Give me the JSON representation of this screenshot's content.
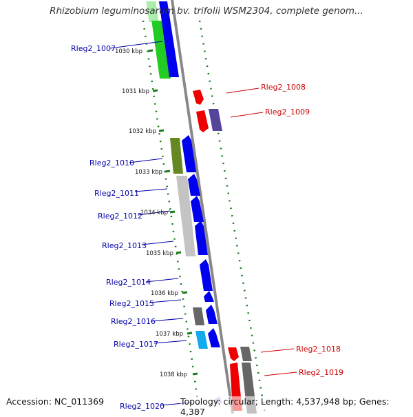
{
  "title": "Rhizobium leguminosarum bv. trifolii WSM2304, complete genom...",
  "accession": "Accession: NC_011369",
  "summary": "Topology: circular; Length: 4,537,948 bp; Genes: 4,387",
  "kbp_ticks": [
    "1030 kbp",
    "1031 kbp",
    "1032 kbp",
    "1033 kbp",
    "1034 kbp",
    "1035 kbp",
    "1036 kbp",
    "1037 kbp",
    "1038 kbp"
  ],
  "genes_left": [
    "Rleg2_1007",
    "Rleg2_1010",
    "Rleg2_1011",
    "Rleg2_1012",
    "Rleg2_1013",
    "Rleg2_1014",
    "Rleg2_1015",
    "Rleg2_1016",
    "Rleg2_1017",
    "Rleg2_1020"
  ],
  "genes_right": [
    "Rleg2_1008",
    "Rleg2_1009",
    "Rleg2_1018",
    "Rleg2_1019"
  ],
  "colors": {
    "left_label": "#0000aa",
    "right_label": "#cc0000",
    "blue_gene": "#0000ee",
    "red_gene": "#ee0000",
    "green_gene": "#22cc22",
    "olive_gene": "#668822",
    "gray_gene": "#777777",
    "cyan_gene": "#11aaee",
    "purple_gene": "#554499",
    "track_dots": "#1a7a1a"
  }
}
